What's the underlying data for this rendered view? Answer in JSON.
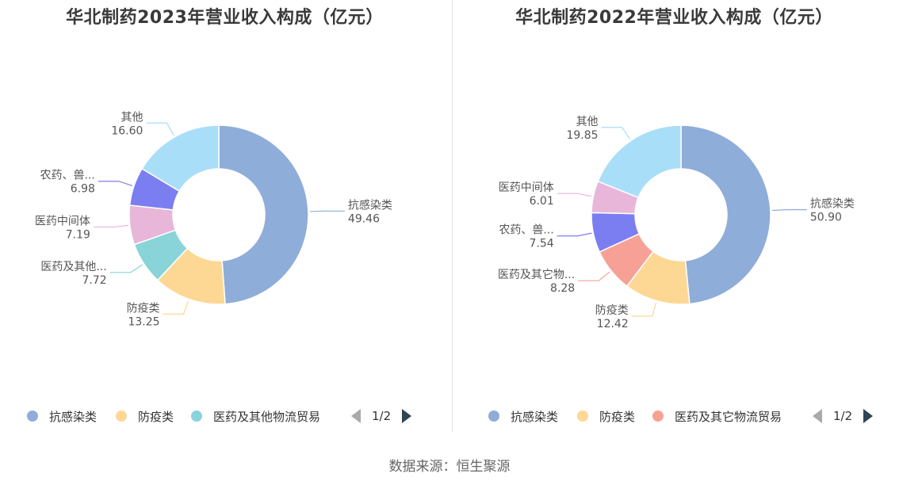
{
  "source": "数据来源：恒生聚源",
  "chart_data": [
    {
      "type": "pie",
      "title": "华北制药2023年营业收入构成（亿元）",
      "slices": [
        {
          "label": "抗感染类",
          "value": 49.46,
          "value_label": "49.46",
          "color": "#8fadd9"
        },
        {
          "label": "防疫类",
          "value": 13.25,
          "value_label": "13.25",
          "color": "#fdd894"
        },
        {
          "label": "医药及其他...",
          "value": 7.72,
          "value_label": "7.72",
          "color": "#88d4d8"
        },
        {
          "label": "医药中间体",
          "value": 7.19,
          "value_label": "7.19",
          "color": "#e8b6d8"
        },
        {
          "label": "农药、兽...",
          "value": 6.98,
          "value_label": "6.98",
          "color": "#7b7ef0"
        },
        {
          "label": "其他",
          "value": 16.6,
          "value_label": "16.60",
          "color": "#a9def9"
        }
      ],
      "legend": {
        "items": [
          {
            "label": "抗感染类",
            "color": "#8fadd9"
          },
          {
            "label": "防疫类",
            "color": "#fdd894"
          },
          {
            "label": "医药及其他物流贸易",
            "color": "#88d4d8"
          }
        ],
        "page": "1/2"
      }
    },
    {
      "type": "pie",
      "title": "华北制药2022年营业收入构成（亿元）",
      "slices": [
        {
          "label": "抗感染类",
          "value": 50.9,
          "value_label": "50.90",
          "color": "#8fadd9"
        },
        {
          "label": "防疫类",
          "value": 12.42,
          "value_label": "12.42",
          "color": "#fdd894"
        },
        {
          "label": "医药及其它物...",
          "value": 8.28,
          "value_label": "8.28",
          "color": "#f7a196"
        },
        {
          "label": "农药、兽...",
          "value": 7.54,
          "value_label": "7.54",
          "color": "#7b7ef0"
        },
        {
          "label": "医药中间体",
          "value": 6.01,
          "value_label": "6.01",
          "color": "#e8b6d8"
        },
        {
          "label": "其他",
          "value": 19.85,
          "value_label": "19.85",
          "color": "#a9def9"
        }
      ],
      "legend": {
        "items": [
          {
            "label": "抗感染类",
            "color": "#8fadd9"
          },
          {
            "label": "防疫类",
            "color": "#fdd894"
          },
          {
            "label": "医药及其它物流贸易",
            "color": "#f7a196"
          }
        ],
        "page": "1/2"
      }
    }
  ]
}
